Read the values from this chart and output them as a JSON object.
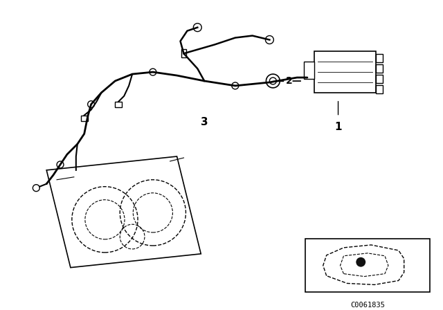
{
  "background_color": "#ffffff",
  "fig_width": 6.4,
  "fig_height": 4.48,
  "dpi": 100,
  "label_1": "1",
  "label_2": "2",
  "label_3": "3",
  "code_text": "C0061835",
  "line_color": "#000000",
  "part_color": "#000000",
  "light_gray": "#cccccc",
  "medium_gray": "#888888"
}
